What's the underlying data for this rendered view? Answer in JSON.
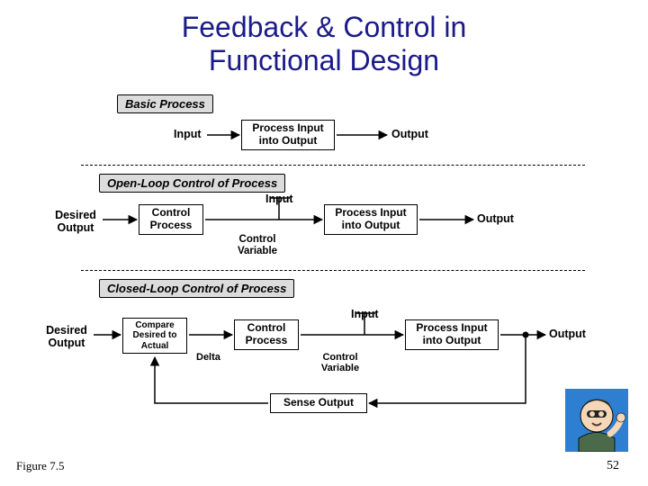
{
  "title_line1": "Feedback & Control in",
  "title_line2": "Functional Design",
  "figure_label": "Figure 7.5",
  "page_number": "52",
  "sections": {
    "basic": {
      "header": "Basic Process",
      "input": "Input",
      "proc": "Process Input\ninto Output",
      "output": "Output"
    },
    "open": {
      "header": "Open-Loop Control of Process",
      "desired": "Desired\nOutput",
      "control": "Control\nProcess",
      "cv": "Control\nVariable",
      "input": "Input",
      "proc": "Process Input\ninto Output",
      "output": "Output"
    },
    "closed": {
      "header": "Closed-Loop Control of Process",
      "desired": "Desired\nOutput",
      "compare": "Compare\nDesired to\nActual",
      "delta": "Delta",
      "control": "Control\nProcess",
      "cv": "Control\nVariable",
      "input": "Input",
      "proc": "Process Input\ninto Output",
      "output": "Output",
      "sense": "Sense Output"
    }
  },
  "colors": {
    "title": "#1a1a8a",
    "header_bg": "#dcdcdc",
    "line": "#000000",
    "icon_bg": "#2e7fd1",
    "icon_skin": "#f4d7b8"
  }
}
